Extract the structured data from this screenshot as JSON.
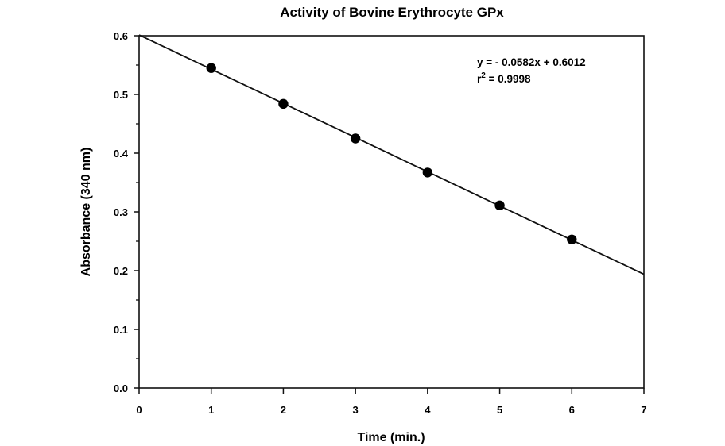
{
  "chart_data": {
    "type": "scatter",
    "title": "Activity of Bovine Erythrocyte GPx",
    "xlabel": "Time (min.)",
    "ylabel": "Absorbance (340 nm)",
    "xlim": [
      0,
      7
    ],
    "ylim": [
      0.0,
      0.6
    ],
    "x_ticks": [
      "0",
      "1",
      "2",
      "3",
      "4",
      "5",
      "6",
      "7"
    ],
    "y_ticks": [
      "0.0",
      "0.1",
      "0.2",
      "0.3",
      "0.4",
      "0.5",
      "0.6"
    ],
    "grid": false,
    "series": [
      {
        "x": [
          1,
          2,
          3,
          4,
          5,
          6
        ],
        "y": [
          0.545,
          0.484,
          0.425,
          0.367,
          0.311,
          0.253
        ]
      }
    ],
    "fit_line": {
      "slope": -0.0582,
      "intercept": 0.6012
    },
    "annotation": {
      "equation": "y = - 0.0582x + 0.6012",
      "r2_prefix": "r",
      "r2_exponent": "2",
      "r2_value": " = 0.9998"
    }
  }
}
